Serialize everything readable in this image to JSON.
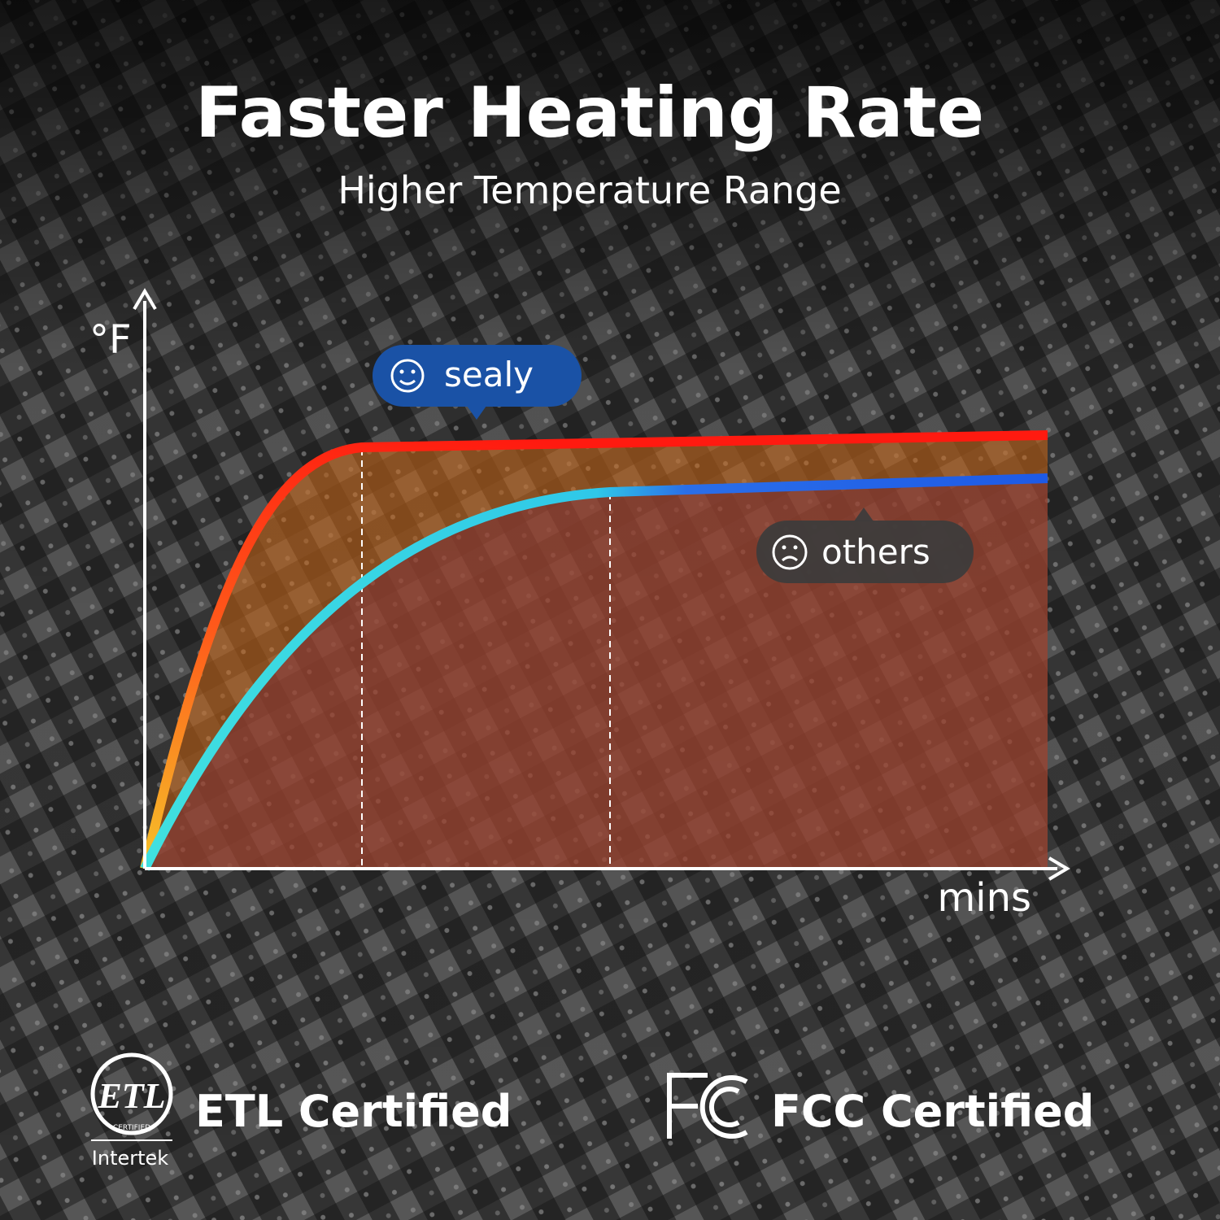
{
  "header": {
    "title": "Faster Heating Rate",
    "subtitle": "Higher Temperature Range"
  },
  "diagram": {
    "y_axis_label": "°F",
    "x_axis_label": "mins",
    "callouts": [
      {
        "label": "sealy"
      },
      {
        "label": "others"
      }
    ]
  },
  "certifications": [
    {
      "logo_text": "ETL",
      "logo_caption": "CERTIFIED",
      "issuer": "Intertek",
      "label": "ETL Certified"
    },
    {
      "label": "FCC Certified"
    }
  ]
}
